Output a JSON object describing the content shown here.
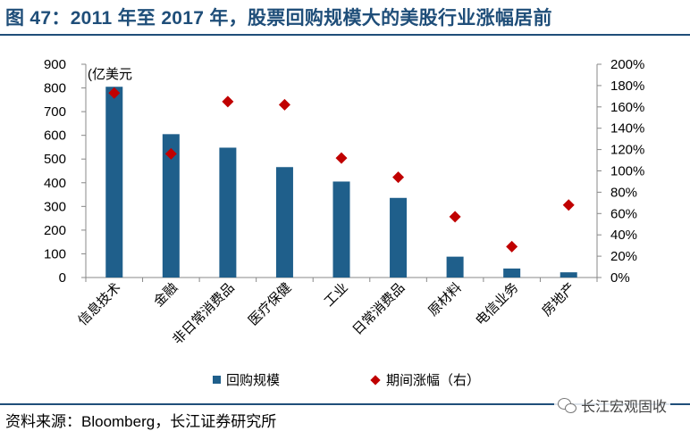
{
  "header": {
    "title": "图 47：2011 年至 2017 年，股票回购规模大的美股行业涨幅居前"
  },
  "footer": {
    "source": "资料来源：Bloomberg，长江证券研究所",
    "watermark": "长江宏观固收"
  },
  "chart_data": {
    "type": "bar",
    "unit_label": "(亿美元",
    "categories": [
      "信息技术",
      "金融",
      "非日常消费品",
      "医疗保健",
      "工业",
      "日常消费品",
      "原材料",
      "电信业务",
      "房地产"
    ],
    "series": [
      {
        "name": "回购规模",
        "type": "bar",
        "axis": "left",
        "color": "#1f5f8b",
        "values": [
          805,
          605,
          548,
          466,
          405,
          336,
          88,
          38,
          22
        ]
      },
      {
        "name": "期间涨幅（右）",
        "type": "scatter",
        "axis": "right",
        "color": "#c00000",
        "marker": "diamond",
        "values": [
          1.73,
          1.16,
          1.65,
          1.62,
          1.12,
          0.94,
          0.57,
          0.29,
          0.68
        ]
      }
    ],
    "y_left": {
      "min": 0,
      "max": 900,
      "ticks": [
        "0",
        "100",
        "200",
        "300",
        "400",
        "500",
        "600",
        "700",
        "800",
        "900"
      ]
    },
    "y_right": {
      "min": 0,
      "max": 2.0,
      "ticks": [
        "0%",
        "20%",
        "40%",
        "60%",
        "80%",
        "100%",
        "120%",
        "140%",
        "160%",
        "180%",
        "200%"
      ]
    },
    "grid": false,
    "legend_position": "bottom"
  }
}
